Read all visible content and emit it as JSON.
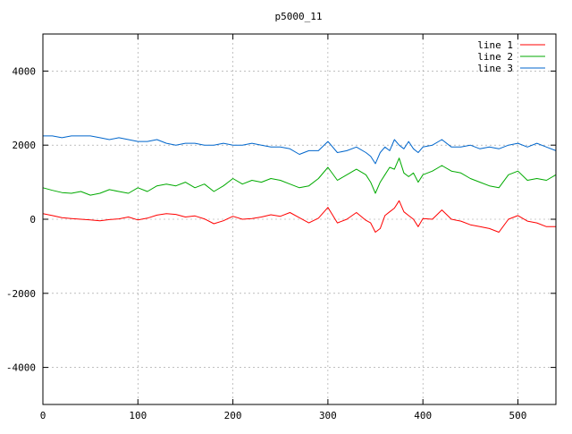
{
  "chart_data": {
    "type": "line",
    "title": "p5000_11",
    "xlabel": "",
    "ylabel": "",
    "xlim": [
      0,
      540
    ],
    "ylim": [
      -5000,
      5000
    ],
    "xticks": [
      0,
      100,
      200,
      300,
      400,
      500
    ],
    "yticks": [
      -4000,
      -2000,
      0,
      2000,
      4000
    ],
    "grid": true,
    "legend_position": "top-right",
    "series": [
      {
        "name": "line 1",
        "color": "#ff0000",
        "x": [
          0,
          10,
          20,
          30,
          40,
          50,
          60,
          70,
          80,
          90,
          100,
          110,
          120,
          130,
          140,
          150,
          160,
          170,
          180,
          190,
          200,
          210,
          220,
          230,
          240,
          250,
          260,
          270,
          280,
          290,
          300,
          310,
          320,
          330,
          340,
          345,
          350,
          355,
          360,
          365,
          370,
          375,
          380,
          385,
          390,
          395,
          400,
          410,
          420,
          430,
          440,
          450,
          460,
          470,
          480,
          490,
          500,
          510,
          520,
          530,
          540
        ],
        "values": [
          150,
          100,
          40,
          20,
          0,
          -20,
          -40,
          -10,
          10,
          60,
          -20,
          30,
          110,
          150,
          130,
          60,
          90,
          10,
          -120,
          -40,
          80,
          0,
          20,
          60,
          120,
          80,
          180,
          40,
          -100,
          30,
          320,
          -100,
          0,
          180,
          -30,
          -100,
          -350,
          -250,
          100,
          200,
          300,
          500,
          200,
          100,
          0,
          -200,
          20,
          0,
          250,
          0,
          -50,
          -150,
          -200,
          -250,
          -350,
          0,
          100,
          -50,
          -100,
          -200,
          -200
        ]
      },
      {
        "name": "line 2",
        "color": "#00aa00",
        "x": [
          0,
          10,
          20,
          30,
          40,
          50,
          60,
          70,
          80,
          90,
          100,
          110,
          120,
          130,
          140,
          150,
          160,
          170,
          180,
          190,
          200,
          210,
          220,
          230,
          240,
          250,
          260,
          270,
          280,
          290,
          300,
          310,
          320,
          330,
          340,
          345,
          350,
          355,
          360,
          365,
          370,
          375,
          380,
          385,
          390,
          395,
          400,
          410,
          420,
          430,
          440,
          450,
          460,
          470,
          480,
          490,
          500,
          510,
          520,
          530,
          540
        ],
        "values": [
          850,
          780,
          720,
          700,
          750,
          650,
          700,
          800,
          750,
          700,
          850,
          750,
          900,
          950,
          900,
          1000,
          850,
          950,
          750,
          900,
          1100,
          950,
          1050,
          1000,
          1100,
          1050,
          950,
          850,
          900,
          1100,
          1400,
          1050,
          1200,
          1350,
          1200,
          1000,
          700,
          1000,
          1200,
          1400,
          1350,
          1650,
          1250,
          1150,
          1250,
          1000,
          1200,
          1300,
          1450,
          1300,
          1250,
          1100,
          1000,
          900,
          850,
          1200,
          1300,
          1050,
          1100,
          1050,
          1200
        ]
      },
      {
        "name": "line 3",
        "color": "#0066cc",
        "x": [
          0,
          10,
          20,
          30,
          40,
          50,
          60,
          70,
          80,
          90,
          100,
          110,
          120,
          130,
          140,
          150,
          160,
          170,
          180,
          190,
          200,
          210,
          220,
          230,
          240,
          250,
          260,
          270,
          280,
          290,
          300,
          310,
          320,
          330,
          340,
          345,
          350,
          355,
          360,
          365,
          370,
          375,
          380,
          385,
          390,
          395,
          400,
          410,
          420,
          430,
          440,
          450,
          460,
          470,
          480,
          490,
          500,
          510,
          520,
          530,
          540
        ],
        "values": [
          2250,
          2250,
          2200,
          2250,
          2250,
          2250,
          2200,
          2150,
          2200,
          2150,
          2100,
          2100,
          2150,
          2050,
          2000,
          2050,
          2050,
          2000,
          2000,
          2050,
          2000,
          2000,
          2050,
          2000,
          1950,
          1950,
          1900,
          1750,
          1850,
          1850,
          2100,
          1800,
          1850,
          1950,
          1800,
          1700,
          1500,
          1800,
          1950,
          1850,
          2150,
          2000,
          1900,
          2100,
          1900,
          1800,
          1950,
          2000,
          2150,
          1950,
          1950,
          2000,
          1900,
          1950,
          1900,
          2000,
          2050,
          1950,
          2050,
          1950,
          1850
        ]
      }
    ]
  }
}
